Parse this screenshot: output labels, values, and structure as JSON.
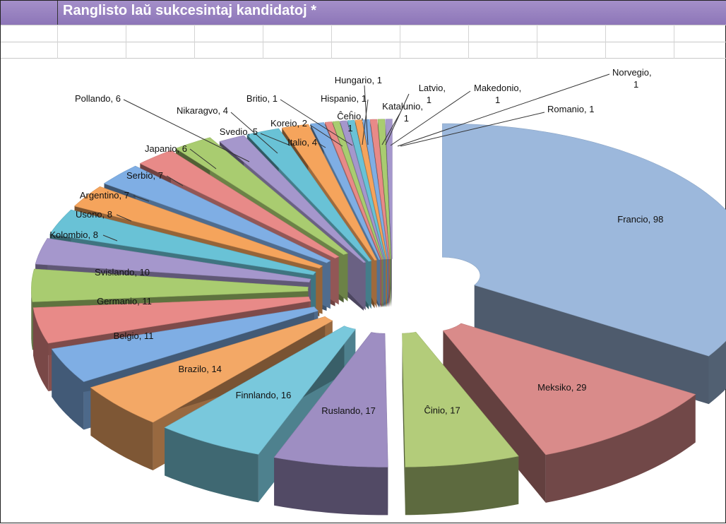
{
  "sheet": {
    "title": "Ranglisto laŭ sukcesintaj kandidatoj *",
    "title_color": "#8d76b8"
  },
  "chart_data": {
    "type": "pie",
    "title": "",
    "style": "3d-exploded",
    "slices": [
      {
        "label": "Francio",
        "value": 98,
        "color": "#9cb8dc"
      },
      {
        "label": "Meksiko",
        "value": 29,
        "color": "#d98b8a"
      },
      {
        "label": "Ĉinio",
        "value": 17,
        "color": "#b3cc7a"
      },
      {
        "label": "Ruslando",
        "value": 17,
        "color": "#9e8ec2"
      },
      {
        "label": "Finnlando",
        "value": 16,
        "color": "#79c8dc"
      },
      {
        "label": "Brazilo",
        "value": 14,
        "color": "#f3a866"
      },
      {
        "label": "Belgio",
        "value": 11,
        "color": "#7faee4"
      },
      {
        "label": "Germanio",
        "value": 11,
        "color": "#e88a88"
      },
      {
        "label": "Svislando",
        "value": 10,
        "color": "#a9cc70"
      },
      {
        "label": "Kolombio",
        "value": 8,
        "color": "#a597cc"
      },
      {
        "label": "Usono",
        "value": 8,
        "color": "#69c2d6"
      },
      {
        "label": "Argentino",
        "value": 7,
        "color": "#f5a45c"
      },
      {
        "label": "Serbio",
        "value": 7,
        "color": "#7faee4"
      },
      {
        "label": "Japanio",
        "value": 6,
        "color": "#e88a88"
      },
      {
        "label": "Pollando",
        "value": 6,
        "color": "#a9cc70"
      },
      {
        "label": "Nikaragvo",
        "value": 4,
        "color": "#a597cc"
      },
      {
        "label": "Svedio",
        "value": 5,
        "color": "#69c2d6"
      },
      {
        "label": "Italio",
        "value": 4,
        "color": "#f5a45c"
      },
      {
        "label": "Koreio",
        "value": 2,
        "color": "#7faee4"
      },
      {
        "label": "Britio",
        "value": 1,
        "color": "#e88a88"
      },
      {
        "label": "Hispanio",
        "value": 1,
        "color": "#a9cc70"
      },
      {
        "label": "Ĉeĥio",
        "value": 1,
        "color": "#a597cc"
      },
      {
        "label": "Hungario",
        "value": 1,
        "color": "#69c2d6"
      },
      {
        "label": "Katalunio",
        "value": 1,
        "color": "#f5a45c"
      },
      {
        "label": "Latvio",
        "value": 1,
        "color": "#7faee4"
      },
      {
        "label": "Makedonio",
        "value": 1,
        "color": "#e88a88"
      },
      {
        "label": "Norvegio",
        "value": 1,
        "color": "#a9cc70"
      },
      {
        "label": "Romanio",
        "value": 1,
        "color": "#a597cc"
      }
    ]
  }
}
